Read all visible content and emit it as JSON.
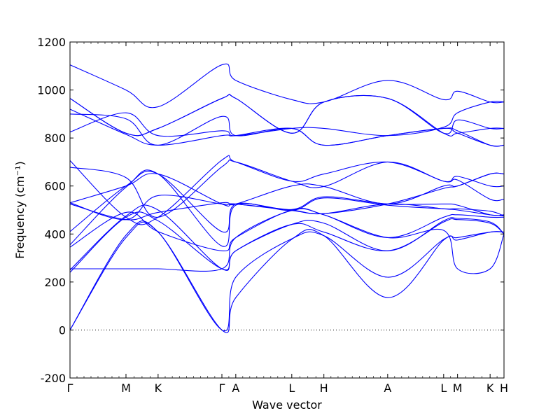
{
  "chart_data": {
    "type": "line",
    "xlabel": "Wave vector",
    "ylabel": "Frequency (cm⁻¹)",
    "ylim": [
      -200,
      1200
    ],
    "y_ticks": [
      -200,
      0,
      200,
      400,
      600,
      800,
      1000,
      1200
    ],
    "grid": false,
    "legend": "none",
    "line_color": "#0000ff",
    "zero_line": {
      "y": 0,
      "style": "dotted",
      "color": "#000000"
    },
    "kpoints": [
      {
        "label": "Γ",
        "x": 0.0
      },
      {
        "label": "M",
        "x": 0.129
      },
      {
        "label": "K",
        "x": 0.203
      },
      {
        "label": "Γ",
        "x": 0.35
      },
      {
        "label": "A",
        "x": 0.382
      },
      {
        "label": "L",
        "x": 0.511
      },
      {
        "label": "H",
        "x": 0.585
      },
      {
        "label": "A",
        "x": 0.732
      },
      {
        "label": "L",
        "x": 0.861
      },
      {
        "label": "M",
        "x": 0.893
      },
      {
        "label": "K",
        "x": 0.968
      },
      {
        "label": "H",
        "x": 1.0
      }
    ],
    "series": [
      {
        "values": [
          0,
          385,
          408,
          0,
          135,
          378,
          393,
          135,
          375,
          375,
          408,
          408
        ]
      },
      {
        "values": [
          0,
          395,
          408,
          0,
          220,
          380,
          393,
          220,
          378,
          385,
          408,
          408
        ]
      },
      {
        "values": [
          240,
          470,
          455,
          255,
          330,
          440,
          408,
          330,
          450,
          460,
          445,
          400
        ]
      },
      {
        "values": [
          250,
          475,
          500,
          255,
          330,
          440,
          445,
          330,
          455,
          465,
          450,
          400
        ]
      },
      {
        "values": [
          255,
          255,
          255,
          255,
          385,
          498,
          480,
          385,
          415,
          255,
          255,
          400
        ]
      },
      {
        "values": [
          345,
          490,
          410,
          330,
          385,
          500,
          480,
          385,
          470,
          480,
          470,
          470
        ]
      },
      {
        "values": [
          355,
          595,
          650,
          350,
          520,
          498,
          550,
          520,
          505,
          505,
          495,
          475
        ]
      },
      {
        "values": [
          410,
          600,
          650,
          410,
          525,
          502,
          555,
          525,
          525,
          520,
          480,
          480
        ]
      },
      {
        "values": [
          530,
          600,
          650,
          525,
          525,
          500,
          485,
          525,
          505,
          500,
          480,
          475
        ]
      },
      {
        "values": [
          530,
          460,
          560,
          525,
          525,
          498,
          485,
          525,
          590,
          600,
          650,
          650
        ]
      },
      {
        "values": [
          525,
          460,
          490,
          530,
          525,
          600,
          598,
          525,
          600,
          600,
          650,
          650
        ]
      },
      {
        "values": [
          678,
          635,
          470,
          680,
          700,
          620,
          598,
          700,
          620,
          640,
          600,
          600
        ]
      },
      {
        "values": [
          706,
          470,
          470,
          708,
          700,
          620,
          650,
          700,
          620,
          625,
          545,
          545
        ]
      },
      {
        "values": [
          825,
          905,
          810,
          830,
          810,
          840,
          840,
          810,
          845,
          905,
          950,
          950
        ]
      },
      {
        "values": [
          900,
          880,
          770,
          890,
          810,
          840,
          770,
          810,
          840,
          830,
          770,
          770
        ]
      },
      {
        "values": [
          920,
          815,
          770,
          810,
          810,
          840,
          770,
          810,
          840,
          820,
          770,
          770
        ]
      },
      {
        "values": [
          965,
          820,
          840,
          965,
          965,
          820,
          950,
          965,
          820,
          875,
          840,
          840
        ]
      },
      {
        "values": [
          965,
          820,
          840,
          965,
          965,
          820,
          950,
          965,
          820,
          820,
          840,
          840
        ]
      },
      {
        "values": [
          1105,
          1000,
          930,
          1105,
          1040,
          960,
          950,
          1040,
          960,
          995,
          950,
          950
        ]
      }
    ]
  }
}
